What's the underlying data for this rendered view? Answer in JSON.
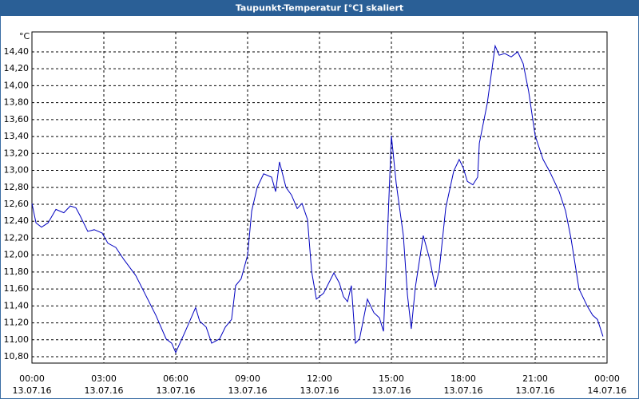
{
  "chart_data": {
    "type": "line",
    "title": "Taupunkt-Temperatur [°C] skaliert",
    "y_unit": "°C",
    "x": [
      0,
      0.17,
      0.4,
      0.67,
      1.0,
      1.33,
      1.6,
      1.83,
      2.0,
      2.33,
      2.6,
      2.93,
      3.17,
      3.5,
      3.83,
      4.33,
      4.67,
      5.17,
      5.6,
      5.83,
      6.0,
      6.4,
      6.83,
      7.0,
      7.27,
      7.5,
      7.83,
      8.07,
      8.33,
      8.5,
      8.73,
      9.0,
      9.17,
      9.4,
      9.67,
      10.0,
      10.17,
      10.33,
      10.6,
      10.83,
      11.07,
      11.27,
      11.5,
      11.67,
      11.87,
      12.17,
      12.6,
      12.83,
      13.0,
      13.17,
      13.33,
      13.5,
      13.67,
      14.0,
      14.27,
      14.5,
      14.67,
      14.83,
      15.0,
      15.2,
      15.5,
      15.67,
      15.83,
      16.0,
      16.33,
      16.6,
      16.83,
      17.0,
      17.27,
      17.6,
      17.83,
      18.0,
      18.17,
      18.4,
      18.6,
      18.67,
      19.0,
      19.33,
      19.5,
      19.73,
      20.0,
      20.27,
      20.5,
      20.73,
      21.0,
      21.33,
      21.6,
      22.0,
      22.27,
      22.5,
      22.83,
      23.17,
      23.4,
      23.6,
      23.83
    ],
    "series": [
      {
        "name": "Taupunkt-Temperatur",
        "color": "#0000c0",
        "values": [
          12.61,
          12.38,
          12.33,
          12.38,
          12.54,
          12.5,
          12.58,
          12.56,
          12.47,
          12.28,
          12.3,
          12.26,
          12.14,
          12.09,
          11.95,
          11.76,
          11.57,
          11.29,
          11.01,
          10.96,
          10.85,
          11.1,
          11.38,
          11.22,
          11.15,
          10.96,
          11.01,
          11.15,
          11.24,
          11.64,
          11.72,
          12.0,
          12.52,
          12.8,
          12.96,
          12.92,
          12.75,
          13.1,
          12.8,
          12.71,
          12.55,
          12.61,
          12.42,
          11.81,
          11.48,
          11.55,
          11.79,
          11.67,
          11.51,
          11.45,
          11.64,
          10.96,
          11.01,
          11.48,
          11.32,
          11.26,
          11.1,
          12.19,
          13.41,
          12.85,
          12.23,
          11.53,
          11.13,
          11.62,
          12.23,
          11.95,
          11.62,
          11.83,
          12.56,
          12.99,
          13.13,
          13.03,
          12.87,
          12.83,
          12.92,
          13.32,
          13.79,
          14.47,
          14.36,
          14.38,
          14.34,
          14.4,
          14.26,
          13.93,
          13.41,
          13.13,
          12.99,
          12.75,
          12.52,
          12.19,
          11.6,
          11.4,
          11.29,
          11.24,
          11.04
        ]
      }
    ],
    "xlim": [
      0,
      24
    ],
    "xticks": [
      {
        "value": 0,
        "label": "00:00",
        "date": "13.07.16"
      },
      {
        "value": 3,
        "label": "03:00",
        "date": "13.07.16"
      },
      {
        "value": 6,
        "label": "06:00",
        "date": "13.07.16"
      },
      {
        "value": 9,
        "label": "09:00",
        "date": "13.07.16"
      },
      {
        "value": 12,
        "label": "12:00",
        "date": "13.07.16"
      },
      {
        "value": 15,
        "label": "15:00",
        "date": "13.07.16"
      },
      {
        "value": 18,
        "label": "18:00",
        "date": "13.07.16"
      },
      {
        "value": 21,
        "label": "21:00",
        "date": "13.07.16"
      },
      {
        "value": 24,
        "label": "00:00",
        "date": "14.07.16"
      }
    ],
    "ylim": [
      10.725,
      14.635
    ],
    "yticks": [
      {
        "value": 10.8,
        "label": "10,80"
      },
      {
        "value": 11.0,
        "label": "11,00"
      },
      {
        "value": 11.2,
        "label": "11,20"
      },
      {
        "value": 11.4,
        "label": "11,40"
      },
      {
        "value": 11.6,
        "label": "11,60"
      },
      {
        "value": 11.8,
        "label": "11,80"
      },
      {
        "value": 12.0,
        "label": "12,00"
      },
      {
        "value": 12.2,
        "label": "12,20"
      },
      {
        "value": 12.4,
        "label": "12,40"
      },
      {
        "value": 12.6,
        "label": "12,60"
      },
      {
        "value": 12.8,
        "label": "12,80"
      },
      {
        "value": 13.0,
        "label": "13,00"
      },
      {
        "value": 13.2,
        "label": "13,20"
      },
      {
        "value": 13.4,
        "label": "13,40"
      },
      {
        "value": 13.6,
        "label": "13,60"
      },
      {
        "value": 13.8,
        "label": "13,80"
      },
      {
        "value": 14.0,
        "label": "14,00"
      },
      {
        "value": 14.2,
        "label": "14,20"
      },
      {
        "value": 14.4,
        "label": "14,40"
      }
    ],
    "grid": true
  }
}
